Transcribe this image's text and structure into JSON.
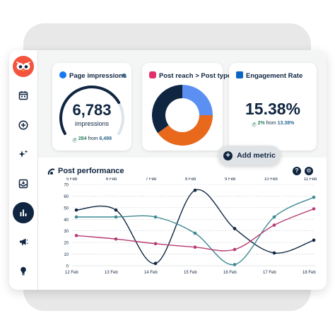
{
  "cards": {
    "impressions": {
      "title": "Page impressions",
      "value": "6,783",
      "unit": "impressions",
      "delta": "284",
      "from_label": "from",
      "from_value": "6,499",
      "gauge_fraction": 0.75
    },
    "reach": {
      "title": "Post reach > Post type",
      "slices": [
        {
          "value": 0.25,
          "color": "#5b8ff2"
        },
        {
          "value": 0.4,
          "color": "#e8681c"
        },
        {
          "value": 0.35,
          "color": "#0f2540"
        }
      ]
    },
    "engagement": {
      "title": "Engagement Rate",
      "value": "15.38%",
      "delta": "2%",
      "from_label": "from",
      "from_value": "13.38%"
    }
  },
  "add_metric": {
    "label": "Add metric"
  },
  "performance": {
    "title": "Post performance"
  },
  "icons": [
    "owl-logo",
    "calendar-icon",
    "plus-circle-icon",
    "sparkle-icon",
    "inbox-icon",
    "analytics-icon",
    "megaphone-icon",
    "lightbulb-icon",
    "help-icon",
    "gear-icon"
  ],
  "colors": {
    "navy": "#0f2540",
    "teal": "#3d8a92",
    "magenta": "#b73a72",
    "orange": "#e8681c",
    "blue": "#5b8ff2",
    "facebook": "#1877f2",
    "instagram": "#e1306c",
    "linkedin": "#0a66c2"
  },
  "chart_data": {
    "type": "line",
    "x_top": [
      "5 Feb",
      "6 Feb",
      "7 Feb",
      "8 Feb",
      "9 Feb",
      "10 Feb",
      "11 Feb"
    ],
    "x_bottom": [
      "12 Feb",
      "13 Feb",
      "14 Feb",
      "15 Feb",
      "16 Feb",
      "17 Feb",
      "18 Feb"
    ],
    "yticks": [
      "0",
      "10",
      "20",
      "30",
      "40",
      "50",
      "60",
      "70"
    ],
    "ylim": [
      0,
      70
    ],
    "grid": true,
    "series": [
      {
        "color": "#0f2540",
        "values": [
          48,
          48,
          2,
          65,
          32,
          11,
          22
        ]
      },
      {
        "color": "#3d8a92",
        "values": [
          42,
          42,
          42,
          28,
          1,
          42,
          59
        ]
      },
      {
        "color": "#b73a72",
        "values": [
          26,
          23,
          19,
          16,
          14,
          35,
          49
        ]
      }
    ]
  }
}
